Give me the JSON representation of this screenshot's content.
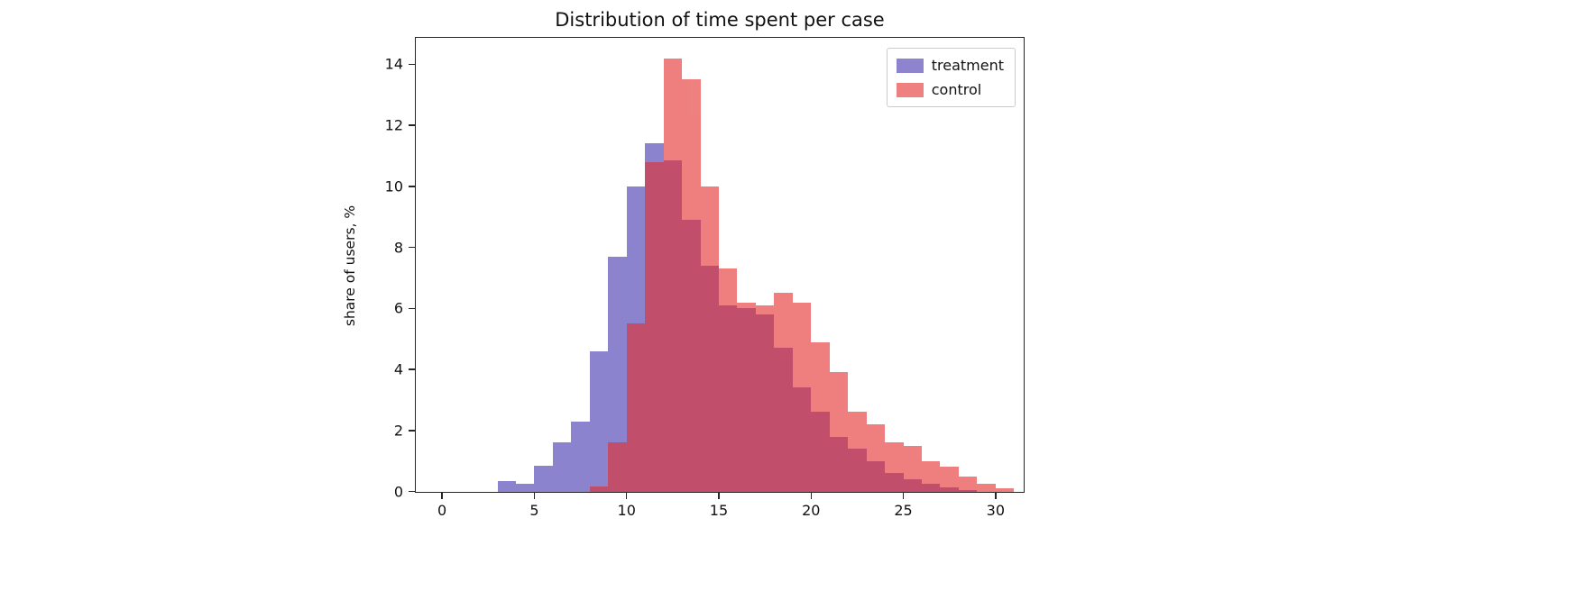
{
  "chart_data": {
    "type": "bar",
    "subtype": "histogram",
    "title": "Distribution of time spent per case",
    "xlabel": "",
    "ylabel": "share of users, %",
    "xlim": [
      -1.4,
      31.5
    ],
    "ylim": [
      0,
      14.85
    ],
    "x_ticks": [
      0,
      5,
      10,
      15,
      20,
      25,
      30
    ],
    "y_ticks": [
      0,
      2,
      4,
      6,
      8,
      10,
      12,
      14
    ],
    "grid": false,
    "bin_width": 1,
    "legend_position": "upper right",
    "series": [
      {
        "name": "treatment",
        "color": "#4f42b5",
        "alpha": 0.65,
        "bin_start": 3,
        "values": [
          0.35,
          0.25,
          0.85,
          1.6,
          2.3,
          4.6,
          7.7,
          10.0,
          11.4,
          10.85,
          8.9,
          7.4,
          6.1,
          6.0,
          5.8,
          4.7,
          3.4,
          2.6,
          1.8,
          1.4,
          1.0,
          0.6,
          0.4,
          0.25,
          0.12,
          0.05
        ]
      },
      {
        "name": "control",
        "color": "#e52b2b",
        "alpha": 0.6,
        "bin_start": 8,
        "values": [
          0.15,
          1.6,
          5.5,
          10.8,
          14.2,
          13.5,
          10.0,
          7.3,
          6.2,
          6.1,
          6.5,
          6.2,
          4.9,
          3.9,
          2.6,
          2.2,
          1.6,
          1.5,
          1.0,
          0.8,
          0.5,
          0.25,
          0.1
        ]
      }
    ]
  }
}
